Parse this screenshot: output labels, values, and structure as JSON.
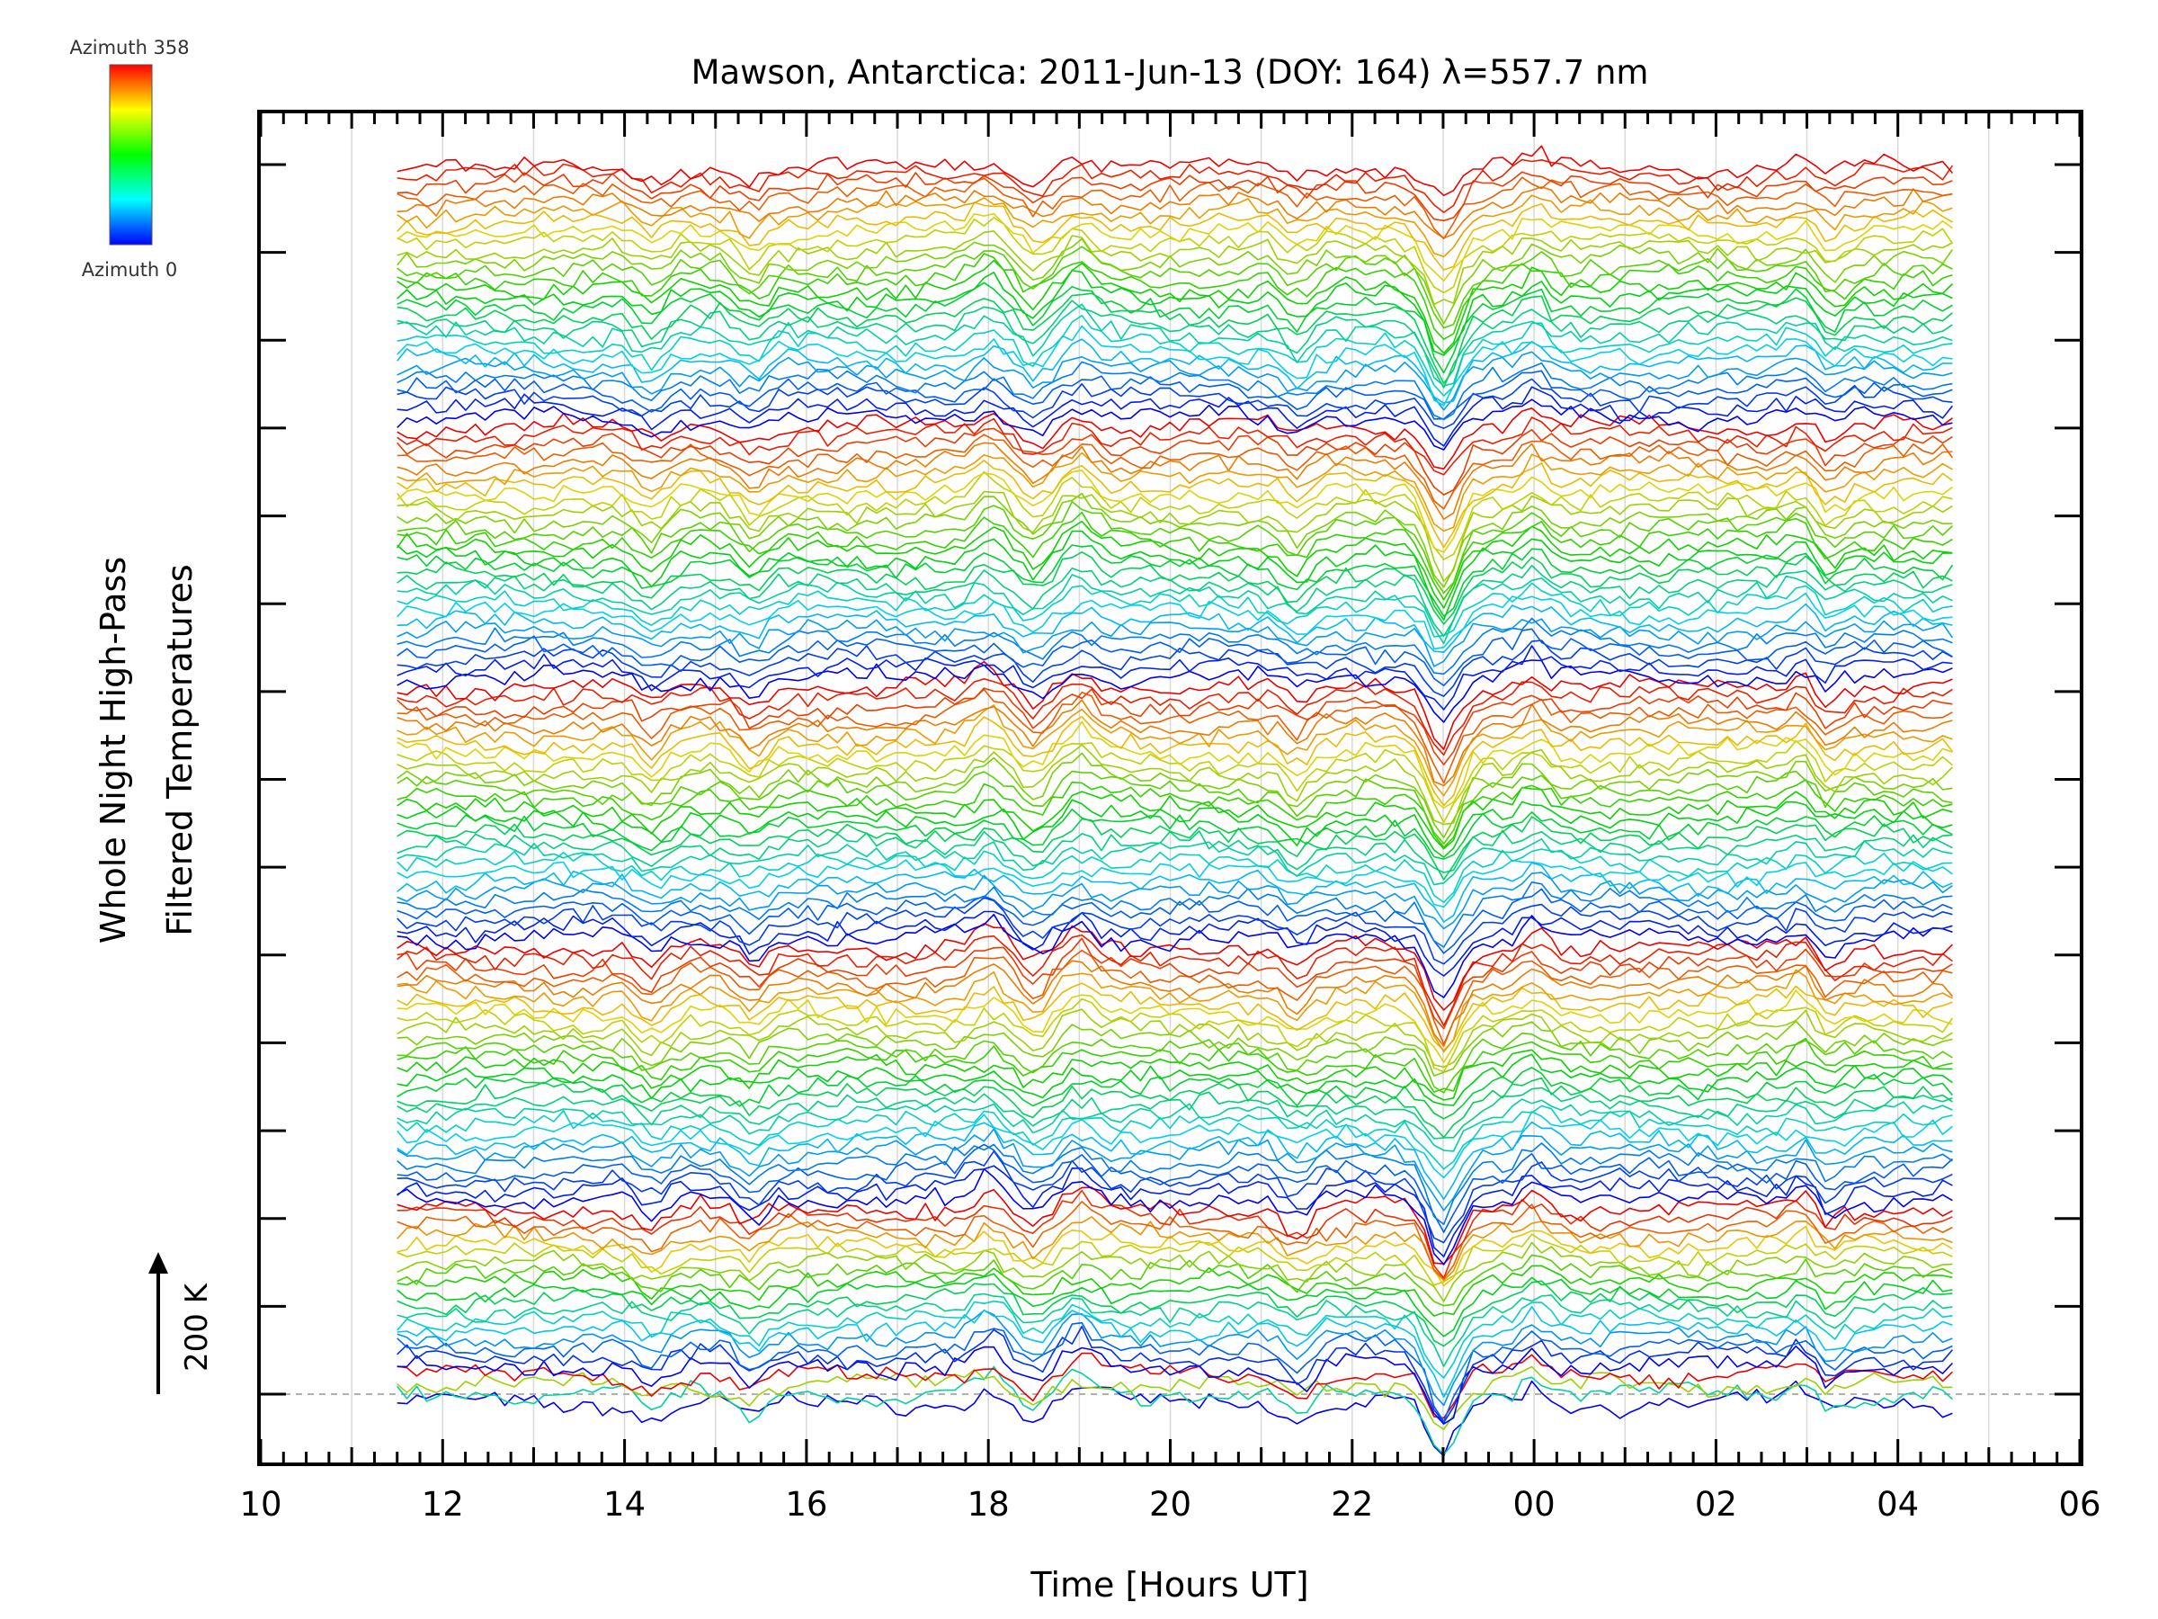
{
  "chart_data": {
    "type": "line",
    "title": "Mawson, Antarctica: 2011-Jun-13 (DOY: 164) λ=557.7 nm",
    "xlabel": "Time [Hours UT]",
    "ylabel": [
      "Whole Night High-Pass",
      "Filtered Temperatures"
    ],
    "x_tick_labels": [
      "10",
      "12",
      "14",
      "16",
      "18",
      "20",
      "22",
      "00",
      "02",
      "04",
      "06"
    ],
    "xlim_hours_ut": [
      10,
      30
    ],
    "data_range_hours_ut": [
      11.5,
      28.6
    ],
    "scale_bar": {
      "label": "200 K",
      "value_k": 200
    },
    "colorbar": {
      "top_label": "Azimuth 358",
      "bottom_label": "Azimuth 0",
      "azimuth_range_deg": [
        0,
        358
      ],
      "colormap": "rainbow (blue → cyan → green → yellow → red)"
    },
    "series_layout": {
      "description": "stacked offset traces, one per azimuth sector of each zenith ring; colour encodes azimuth",
      "rings": 6,
      "traces_per_ring": [
        4,
        18,
        28,
        28,
        28,
        28
      ]
    },
    "colors": {
      "azimuth_0": "#0000ff",
      "azimuth_90": "#00ffff",
      "azimuth_180": "#00ff00",
      "azimuth_270": "#ffff00",
      "azimuth_358": "#ff0000"
    },
    "common_features_hours_ut": [
      {
        "time": 14.3,
        "kind": "dip"
      },
      {
        "time": 15.4,
        "kind": "dip"
      },
      {
        "time": 18.0,
        "kind": "peak"
      },
      {
        "time": 18.5,
        "kind": "dip"
      },
      {
        "time": 19.0,
        "kind": "peak"
      },
      {
        "time": 21.4,
        "kind": "dip"
      },
      {
        "time": 23.0,
        "kind": "deep dip"
      },
      {
        "time": 24.0,
        "kind": "peak"
      },
      {
        "time": 27.0,
        "kind": "peak"
      },
      {
        "time": 27.2,
        "kind": "dip"
      }
    ],
    "grid": "vertical lines at hourly ticks",
    "baseline": "dashed line at the lowest trace level"
  }
}
